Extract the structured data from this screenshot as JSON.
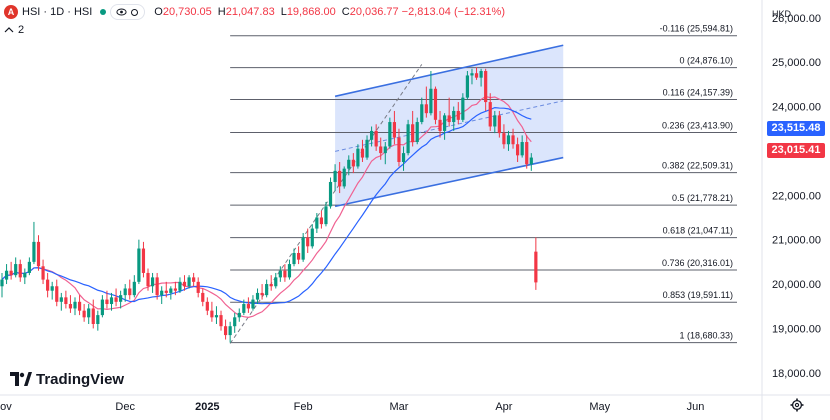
{
  "header": {
    "symbol_badge": "A",
    "title": "HSI · 1D · HSI",
    "ohlc": [
      {
        "k": "O",
        "v": "20,730.05"
      },
      {
        "k": "H",
        "v": "21,047.83"
      },
      {
        "k": "L",
        "v": "19,868.00"
      },
      {
        "k": "C",
        "v": "20,036.77"
      },
      {
        "k": "",
        "v": "−2,813.04 (−12.31%)"
      }
    ],
    "indicator_count": "2",
    "currency": "HKD"
  },
  "brand": "TradingView",
  "colors": {
    "up": "#089981",
    "down": "#f23645",
    "channel": "#3a6fe0",
    "channel_fill": "#cfdcfb",
    "ma_fast": "#f06292",
    "ma_slow": "#2962ff",
    "fib": "#5d606b",
    "tag_blue": "#2962ff",
    "tag_red": "#f23645"
  },
  "chart_data": {
    "type": "candlestick",
    "y_axis": {
      "ticks": [
        26000,
        25000,
        24000,
        23000,
        22000,
        21000,
        20000,
        19000,
        18000
      ],
      "labels": [
        "26,000.00",
        "25,000.00",
        "24,000.00",
        "23,000.00",
        "22,000.00",
        "21,000.00",
        "20,000.00",
        "19,000.00",
        "18,000.00"
      ],
      "range": [
        17500,
        26400
      ]
    },
    "x_axis": {
      "labels": [
        "Nov",
        "Dec",
        "2025",
        "Feb",
        "Mar",
        "Apr",
        "May",
        "Jun"
      ],
      "label_index": [
        0,
        27,
        45,
        66,
        87,
        110,
        131,
        152
      ],
      "bold": [
        false,
        false,
        true,
        false,
        false,
        false,
        false,
        false
      ],
      "range": [
        0,
        167
      ]
    },
    "price_tags": [
      {
        "label": "23,515.48",
        "value": 23515,
        "color": "tag_blue"
      },
      {
        "label": "23,015.41",
        "value": 23015,
        "color": "tag_red"
      }
    ],
    "fib_levels": [
      {
        "label": "-0.116 (25,594.81)",
        "value": 25594.81
      },
      {
        "label": "0 (24,876.10)",
        "value": 24876.1
      },
      {
        "label": "0.116 (24,157.39)",
        "value": 24157.39
      },
      {
        "label": "0.236 (23,413.90)",
        "value": 23413.9
      },
      {
        "label": "0.382 (22,509.31)",
        "value": 22509.31
      },
      {
        "label": "0.5 (21,778.21)",
        "value": 21778.21
      },
      {
        "label": "0.618 (21,047.11)",
        "value": 21047.11
      },
      {
        "label": "0.736 (20,316.01)",
        "value": 20316.01
      },
      {
        "label": "0.853 (19,591.11)",
        "value": 19591.11
      },
      {
        "label": "1 (18,680.33)",
        "value": 18680.33
      }
    ],
    "fib_start_index": 50,
    "channel": {
      "upper": [
        [
          73,
          24230
        ],
        [
          123,
          25380
        ]
      ],
      "lower": [
        [
          73,
          21750
        ],
        [
          123,
          22850
        ]
      ],
      "mid": [
        [
          73,
          22990
        ],
        [
          123,
          24130
        ]
      ]
    },
    "trend_dashed": [
      [
        50,
        18660
      ],
      [
        92,
        24950
      ]
    ],
    "candles": [
      {
        "o": 19950,
        "h": 20250,
        "l": 19700,
        "c": 20100
      },
      {
        "o": 20100,
        "h": 20450,
        "l": 20000,
        "c": 20300
      },
      {
        "o": 20300,
        "h": 20500,
        "l": 20100,
        "c": 20200
      },
      {
        "o": 20200,
        "h": 20600,
        "l": 20150,
        "c": 20450
      },
      {
        "o": 20450,
        "h": 20550,
        "l": 20050,
        "c": 20150
      },
      {
        "o": 20150,
        "h": 20350,
        "l": 20000,
        "c": 20250
      },
      {
        "o": 20250,
        "h": 20600,
        "l": 20200,
        "c": 20500
      },
      {
        "o": 20500,
        "h": 21400,
        "l": 20450,
        "c": 20950
      },
      {
        "o": 20950,
        "h": 21100,
        "l": 20300,
        "c": 20400
      },
      {
        "o": 20400,
        "h": 20550,
        "l": 20000,
        "c": 20100
      },
      {
        "o": 20100,
        "h": 20250,
        "l": 19700,
        "c": 19850
      },
      {
        "o": 19850,
        "h": 20050,
        "l": 19650,
        "c": 19950
      },
      {
        "o": 19950,
        "h": 20100,
        "l": 19500,
        "c": 19600
      },
      {
        "o": 19600,
        "h": 19800,
        "l": 19400,
        "c": 19700
      },
      {
        "o": 19700,
        "h": 19850,
        "l": 19450,
        "c": 19550
      },
      {
        "o": 19550,
        "h": 19750,
        "l": 19350,
        "c": 19450
      },
      {
        "o": 19450,
        "h": 19700,
        "l": 19300,
        "c": 19600
      },
      {
        "o": 19600,
        "h": 19750,
        "l": 19300,
        "c": 19400
      },
      {
        "o": 19400,
        "h": 19550,
        "l": 19150,
        "c": 19250
      },
      {
        "o": 19250,
        "h": 19550,
        "l": 19100,
        "c": 19450
      },
      {
        "o": 19450,
        "h": 19650,
        "l": 19000,
        "c": 19100
      },
      {
        "o": 19100,
        "h": 19400,
        "l": 18950,
        "c": 19300
      },
      {
        "o": 19300,
        "h": 19750,
        "l": 19250,
        "c": 19650
      },
      {
        "o": 19650,
        "h": 19850,
        "l": 19450,
        "c": 19550
      },
      {
        "o": 19550,
        "h": 19800,
        "l": 19400,
        "c": 19700
      },
      {
        "o": 19700,
        "h": 19900,
        "l": 19500,
        "c": 19600
      },
      {
        "o": 19600,
        "h": 19850,
        "l": 19450,
        "c": 19750
      },
      {
        "o": 19750,
        "h": 20000,
        "l": 19600,
        "c": 19900
      },
      {
        "o": 19900,
        "h": 20100,
        "l": 19650,
        "c": 19750
      },
      {
        "o": 19750,
        "h": 20200,
        "l": 19700,
        "c": 20050
      },
      {
        "o": 20050,
        "h": 21000,
        "l": 20000,
        "c": 20800
      },
      {
        "o": 20800,
        "h": 20950,
        "l": 20150,
        "c": 20250
      },
      {
        "o": 20250,
        "h": 20350,
        "l": 19850,
        "c": 19950
      },
      {
        "o": 19950,
        "h": 20250,
        "l": 19800,
        "c": 20150
      },
      {
        "o": 20150,
        "h": 20250,
        "l": 19650,
        "c": 19750
      },
      {
        "o": 19750,
        "h": 19950,
        "l": 19550,
        "c": 19850
      },
      {
        "o": 19850,
        "h": 20050,
        "l": 19700,
        "c": 19800
      },
      {
        "o": 19800,
        "h": 19950,
        "l": 19650,
        "c": 19900
      },
      {
        "o": 19900,
        "h": 20050,
        "l": 19750,
        "c": 19850
      },
      {
        "o": 19850,
        "h": 20150,
        "l": 19800,
        "c": 20050
      },
      {
        "o": 20050,
        "h": 20200,
        "l": 19850,
        "c": 19950
      },
      {
        "o": 19950,
        "h": 20200,
        "l": 19900,
        "c": 20150
      },
      {
        "o": 20150,
        "h": 20250,
        "l": 19950,
        "c": 20050
      },
      {
        "o": 20050,
        "h": 20150,
        "l": 19700,
        "c": 19800
      },
      {
        "o": 19800,
        "h": 19900,
        "l": 19500,
        "c": 19600
      },
      {
        "o": 19600,
        "h": 19700,
        "l": 19300,
        "c": 19400
      },
      {
        "o": 19400,
        "h": 19600,
        "l": 19150,
        "c": 19250
      },
      {
        "o": 19250,
        "h": 19500,
        "l": 19100,
        "c": 19300
      },
      {
        "o": 19300,
        "h": 19400,
        "l": 18950,
        "c": 19050
      },
      {
        "o": 19050,
        "h": 19200,
        "l": 18750,
        "c": 18850
      },
      {
        "o": 18850,
        "h": 19150,
        "l": 18680,
        "c": 19050
      },
      {
        "o": 19050,
        "h": 19350,
        "l": 18900,
        "c": 19250
      },
      {
        "o": 19250,
        "h": 19450,
        "l": 19150,
        "c": 19350
      },
      {
        "o": 19350,
        "h": 19650,
        "l": 19300,
        "c": 19550
      },
      {
        "o": 19550,
        "h": 19700,
        "l": 19350,
        "c": 19450
      },
      {
        "o": 19450,
        "h": 19750,
        "l": 19400,
        "c": 19650
      },
      {
        "o": 19650,
        "h": 19900,
        "l": 19550,
        "c": 19800
      },
      {
        "o": 19800,
        "h": 20000,
        "l": 19650,
        "c": 19750
      },
      {
        "o": 19750,
        "h": 20100,
        "l": 19700,
        "c": 20000
      },
      {
        "o": 20000,
        "h": 20200,
        "l": 19850,
        "c": 19950
      },
      {
        "o": 19950,
        "h": 20250,
        "l": 19900,
        "c": 20150
      },
      {
        "o": 20150,
        "h": 20400,
        "l": 20050,
        "c": 20300
      },
      {
        "o": 20300,
        "h": 20450,
        "l": 20050,
        "c": 20150
      },
      {
        "o": 20150,
        "h": 20550,
        "l": 20100,
        "c": 20450
      },
      {
        "o": 20450,
        "h": 20800,
        "l": 20400,
        "c": 20700
      },
      {
        "o": 20700,
        "h": 20850,
        "l": 20450,
        "c": 20550
      },
      {
        "o": 20550,
        "h": 21150,
        "l": 20500,
        "c": 21050
      },
      {
        "o": 21050,
        "h": 21250,
        "l": 20700,
        "c": 20850
      },
      {
        "o": 20850,
        "h": 21350,
        "l": 20800,
        "c": 21250
      },
      {
        "o": 21250,
        "h": 21600,
        "l": 21150,
        "c": 21500
      },
      {
        "o": 21500,
        "h": 21650,
        "l": 21250,
        "c": 21350
      },
      {
        "o": 21350,
        "h": 21850,
        "l": 21300,
        "c": 21750
      },
      {
        "o": 21750,
        "h": 22400,
        "l": 21700,
        "c": 22300
      },
      {
        "o": 22300,
        "h": 22700,
        "l": 22100,
        "c": 22550
      },
      {
        "o": 22550,
        "h": 22750,
        "l": 22050,
        "c": 22200
      },
      {
        "o": 22200,
        "h": 22650,
        "l": 22150,
        "c": 22600
      },
      {
        "o": 22600,
        "h": 22900,
        "l": 22450,
        "c": 22800
      },
      {
        "o": 22800,
        "h": 22950,
        "l": 22500,
        "c": 22650
      },
      {
        "o": 22650,
        "h": 23150,
        "l": 22600,
        "c": 23050
      },
      {
        "o": 23050,
        "h": 23250,
        "l": 22750,
        "c": 22850
      },
      {
        "o": 22850,
        "h": 23350,
        "l": 22800,
        "c": 23250
      },
      {
        "o": 23250,
        "h": 23550,
        "l": 23100,
        "c": 23450
      },
      {
        "o": 23450,
        "h": 23600,
        "l": 23000,
        "c": 23100
      },
      {
        "o": 23100,
        "h": 23300,
        "l": 22800,
        "c": 22950
      },
      {
        "o": 22950,
        "h": 23200,
        "l": 22700,
        "c": 23100
      },
      {
        "o": 23100,
        "h": 23750,
        "l": 23050,
        "c": 23650
      },
      {
        "o": 23650,
        "h": 23900,
        "l": 23150,
        "c": 23300
      },
      {
        "o": 23300,
        "h": 23500,
        "l": 22650,
        "c": 22750
      },
      {
        "o": 22750,
        "h": 23100,
        "l": 22550,
        "c": 22950
      },
      {
        "o": 22950,
        "h": 23700,
        "l": 22900,
        "c": 23600
      },
      {
        "o": 23600,
        "h": 23900,
        "l": 23100,
        "c": 23200
      },
      {
        "o": 23200,
        "h": 23750,
        "l": 23150,
        "c": 23650
      },
      {
        "o": 23650,
        "h": 24200,
        "l": 23600,
        "c": 24050
      },
      {
        "o": 24050,
        "h": 24450,
        "l": 23750,
        "c": 23850
      },
      {
        "o": 23850,
        "h": 24800,
        "l": 23800,
        "c": 24400
      },
      {
        "o": 24400,
        "h": 24450,
        "l": 23600,
        "c": 23700
      },
      {
        "o": 23700,
        "h": 23900,
        "l": 23300,
        "c": 23450
      },
      {
        "o": 23450,
        "h": 23850,
        "l": 23250,
        "c": 23800
      },
      {
        "o": 23800,
        "h": 24200,
        "l": 23550,
        "c": 23650
      },
      {
        "o": 23650,
        "h": 24000,
        "l": 23450,
        "c": 23900
      },
      {
        "o": 23900,
        "h": 24100,
        "l": 23600,
        "c": 23700
      },
      {
        "o": 23700,
        "h": 24300,
        "l": 23650,
        "c": 24200
      },
      {
        "o": 24200,
        "h": 24800,
        "l": 24150,
        "c": 24700
      },
      {
        "o": 24700,
        "h": 24850,
        "l": 24500,
        "c": 24750
      },
      {
        "o": 24750,
        "h": 24880,
        "l": 24600,
        "c": 24650
      },
      {
        "o": 24650,
        "h": 24850,
        "l": 24450,
        "c": 24800
      },
      {
        "o": 24800,
        "h": 24850,
        "l": 23900,
        "c": 24100
      },
      {
        "o": 24100,
        "h": 24300,
        "l": 23450,
        "c": 23550
      },
      {
        "o": 23550,
        "h": 23900,
        "l": 23400,
        "c": 23800
      },
      {
        "o": 23800,
        "h": 23900,
        "l": 23300,
        "c": 23400
      },
      {
        "o": 23400,
        "h": 23600,
        "l": 23050,
        "c": 23150
      },
      {
        "o": 23150,
        "h": 23450,
        "l": 23000,
        "c": 23350
      },
      {
        "o": 23350,
        "h": 23500,
        "l": 23050,
        "c": 23150
      },
      {
        "o": 23150,
        "h": 23300,
        "l": 22750,
        "c": 22900
      },
      {
        "o": 22900,
        "h": 23350,
        "l": 22850,
        "c": 23200
      },
      {
        "o": 23200,
        "h": 23350,
        "l": 22600,
        "c": 22700
      },
      {
        "o": 22700,
        "h": 22950,
        "l": 22550,
        "c": 22850
      },
      {
        "o": 20730,
        "h": 21050,
        "l": 19868,
        "c": 20037
      }
    ],
    "candle_start_index": 0
  }
}
